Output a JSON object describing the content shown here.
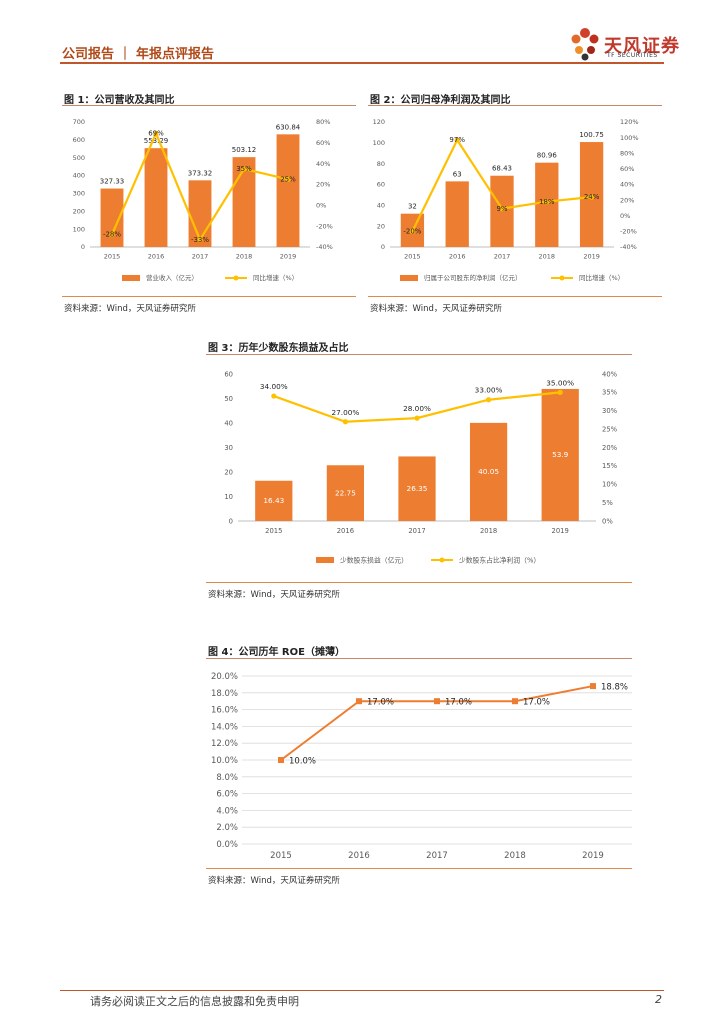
{
  "header": {
    "title": "公司报告 ｜ 年报点评报告",
    "logo_cn": "天风证券",
    "logo_en": "TF SECURITIES"
  },
  "colors": {
    "bar": "#ed7d31",
    "line": "#ffc000",
    "roe_line": "#ed7d31",
    "accent": "#c0562a"
  },
  "figures": [
    {
      "title": "图 1：公司营收及其同比",
      "source": "资料来源：Wind，天风证券研究所"
    },
    {
      "title": "图 2：公司归母净利润及其同比",
      "source": "资料来源：Wind，天风证券研究所"
    },
    {
      "title": "图 3：历年少数股东损益及占比",
      "source": "资料来源：Wind，天风证券研究所"
    },
    {
      "title": "图 4：公司历年 ROE（摊薄）",
      "source": "资料来源：Wind，天风证券研究所"
    }
  ],
  "chart_data": [
    {
      "type": "bar",
      "categories": [
        "2015",
        "2016",
        "2017",
        "2018",
        "2019"
      ],
      "series": [
        {
          "name": "营业收入（亿元）",
          "type": "bar",
          "axis": "left",
          "values": [
            327.33,
            553.29,
            373.32,
            503.12,
            630.84
          ],
          "labels": [
            "327.33",
            "553.29",
            "373.32",
            "503.12",
            "630.84"
          ]
        },
        {
          "name": "同比增速（%）",
          "type": "line",
          "axis": "right",
          "values": [
            -28,
            69,
            -33,
            35,
            25
          ],
          "labels": [
            "-28%",
            "69%",
            "-33%",
            "35%",
            "25%"
          ]
        }
      ],
      "ylim_left": [
        0,
        700
      ],
      "ylim_right": [
        -40,
        80
      ],
      "left_ticks": [
        "0",
        "100",
        "200",
        "300",
        "400",
        "500",
        "600",
        "700"
      ],
      "right_ticks": [
        "-40%",
        "-20%",
        "0%",
        "20%",
        "40%",
        "60%",
        "80%"
      ],
      "legend_position": "bottom"
    },
    {
      "type": "bar",
      "categories": [
        "2015",
        "2016",
        "2017",
        "2018",
        "2019"
      ],
      "series": [
        {
          "name": "归属于公司股东的净利润（亿元）",
          "type": "bar",
          "axis": "left",
          "values": [
            32,
            63,
            68.43,
            80.96,
            100.75
          ],
          "labels": [
            "32",
            "63",
            "68.43",
            "80.96",
            "100.75"
          ]
        },
        {
          "name": "同比增速（%）",
          "type": "line",
          "axis": "right",
          "values": [
            -20,
            97,
            9,
            18,
            24
          ],
          "labels": [
            "-20%",
            "97%",
            "9%",
            "18%",
            "24%"
          ]
        }
      ],
      "ylim_left": [
        0,
        120
      ],
      "ylim_right": [
        -40,
        120
      ],
      "left_ticks": [
        "0",
        "20",
        "40",
        "60",
        "80",
        "100",
        "120"
      ],
      "right_ticks": [
        "-40%",
        "-20%",
        "0%",
        "20%",
        "40%",
        "60%",
        "80%",
        "100%",
        "120%"
      ],
      "legend_position": "bottom"
    },
    {
      "type": "bar",
      "categories": [
        "2015",
        "2016",
        "2017",
        "2018",
        "2019"
      ],
      "series": [
        {
          "name": "少数股东损益（亿元）",
          "type": "bar",
          "axis": "left",
          "values": [
            16.43,
            22.75,
            26.35,
            40.05,
            53.9
          ],
          "labels": [
            "16.43",
            "22.75",
            "26.35",
            "40.05",
            "53.9"
          ]
        },
        {
          "name": "少数股东占比净利润（%）",
          "type": "line",
          "axis": "right",
          "values": [
            34,
            27,
            28,
            33,
            35
          ],
          "labels": [
            "34.00%",
            "27.00%",
            "28.00%",
            "33.00%",
            "35.00%"
          ]
        }
      ],
      "ylim_left": [
        0,
        60
      ],
      "ylim_right": [
        0,
        40
      ],
      "left_ticks": [
        "0",
        "10",
        "20",
        "30",
        "40",
        "50",
        "60"
      ],
      "right_ticks": [
        "0%",
        "5%",
        "10%",
        "15%",
        "20%",
        "25%",
        "30%",
        "35%",
        "40%"
      ],
      "legend_position": "bottom"
    },
    {
      "type": "line",
      "categories": [
        "2015",
        "2016",
        "2017",
        "2018",
        "2019"
      ],
      "series": [
        {
          "name": "",
          "values": [
            10.0,
            17.0,
            17.0,
            17.0,
            18.8
          ],
          "labels": [
            "10.0%",
            "17.0%",
            "17.0%",
            "17.0%",
            "18.8%"
          ]
        }
      ],
      "ylim": [
        0,
        20
      ],
      "y_ticks": [
        "0.0%",
        "2.0%",
        "4.0%",
        "6.0%",
        "8.0%",
        "10.0%",
        "12.0%",
        "14.0%",
        "16.0%",
        "18.0%",
        "20.0%"
      ],
      "grid": true
    }
  ],
  "footer": {
    "disclaimer": "请务必阅读正文之后的信息披露和免责申明",
    "page": "2"
  }
}
